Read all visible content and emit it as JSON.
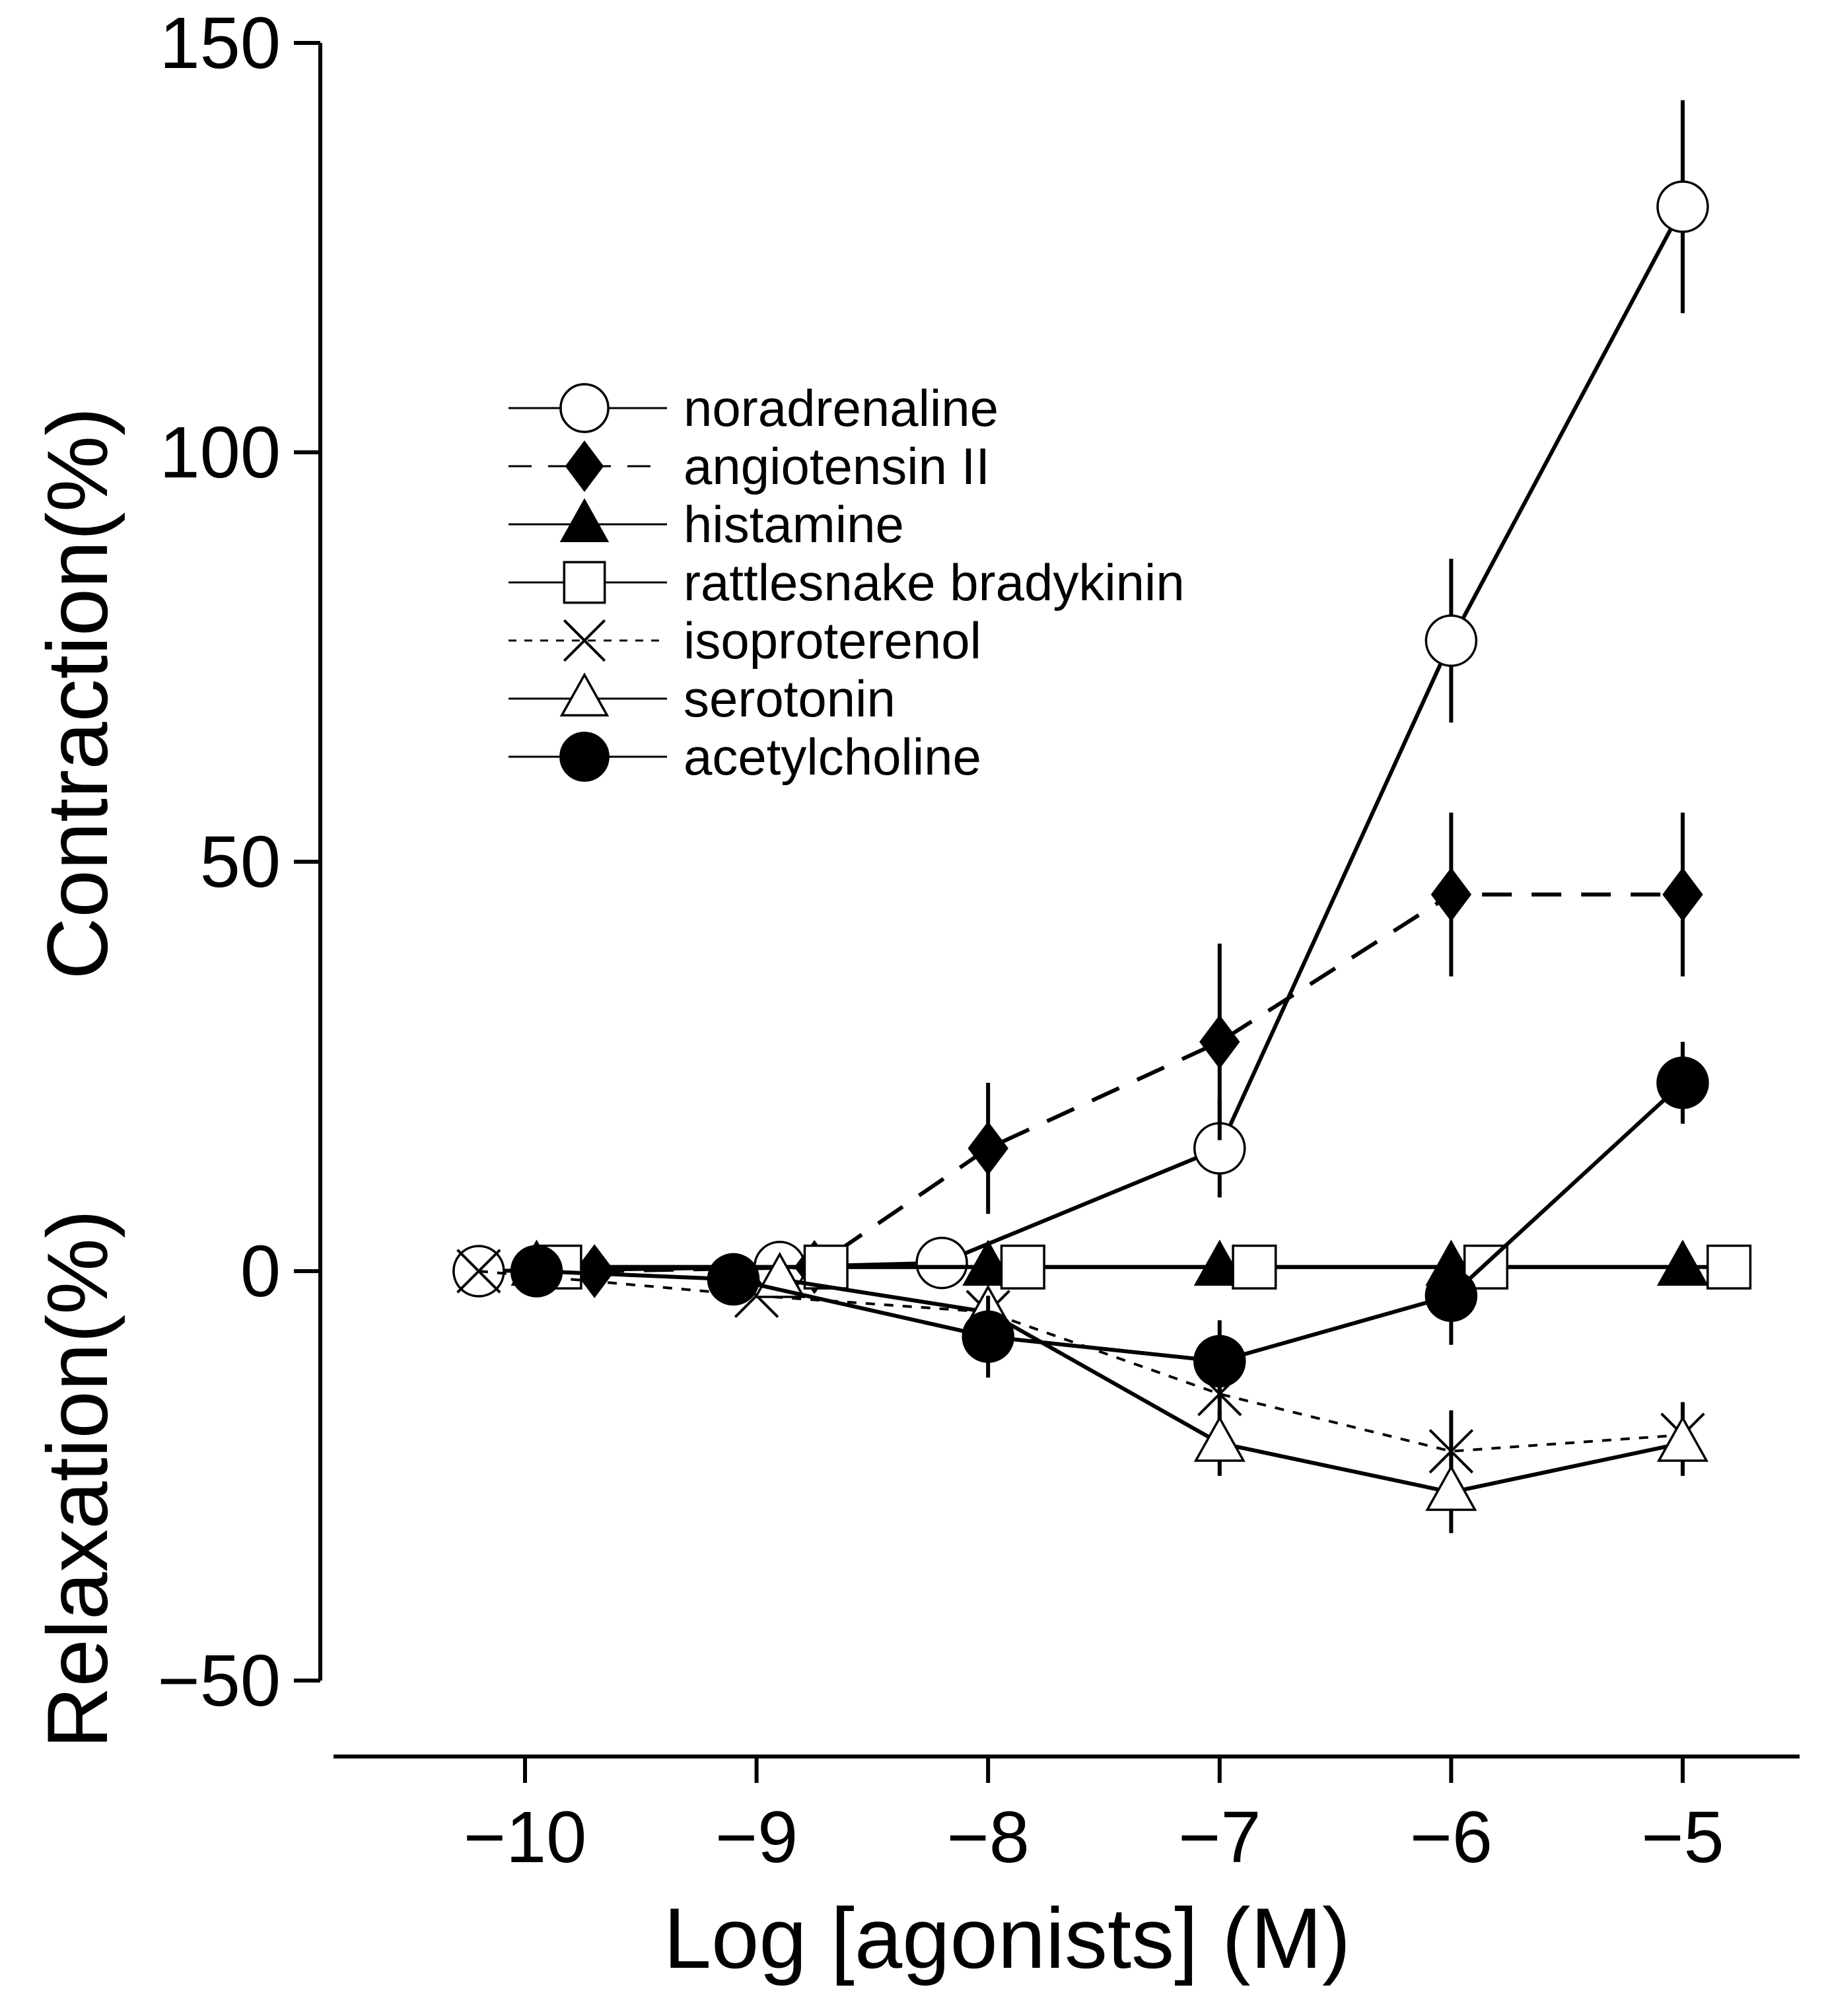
{
  "colors": {
    "ink": "#000000",
    "paper": "#ffffff"
  },
  "chart_data": {
    "type": "line",
    "title": "",
    "xlabel": "Log [agonists] (M)",
    "ylabel_upper": "Contraction(%)",
    "ylabel_lower": "Relaxation(%)",
    "xlim": [
      -10.9,
      -4.5
    ],
    "ylim": [
      -50,
      150
    ],
    "xticks": [
      -10,
      -9,
      -8,
      -7,
      -6,
      -5
    ],
    "xtick_labels": [
      "−10",
      "−9",
      "−8",
      "−7",
      "−6",
      "−5"
    ],
    "yticks": [
      -50,
      0,
      50,
      100,
      150
    ],
    "ytick_labels": [
      "−50",
      "0",
      "50",
      "100",
      "150"
    ],
    "grid": false,
    "legend_position": "upper-left",
    "series": [
      {
        "name": "noradrenaline",
        "marker": "circle-open",
        "dash": "solid",
        "x": [
          -10.2,
          -8.9,
          -8.2,
          -7.0,
          -6.0,
          -5.0
        ],
        "y": [
          0,
          0.5,
          1,
          15,
          77,
          130
        ],
        "err": [
          0,
          0,
          0,
          6,
          10,
          13
        ]
      },
      {
        "name": "angiotensin II",
        "marker": "diamond-filled",
        "dash": "dashed",
        "x": [
          -9.7,
          -8.75,
          -8.0,
          -7.0,
          -6.0,
          -5.0
        ],
        "y": [
          0,
          0.5,
          15,
          28,
          46,
          46
        ],
        "err": [
          0,
          0,
          8,
          12,
          10,
          10
        ]
      },
      {
        "name": "histamine",
        "marker": "triangle-filled",
        "dash": "solid",
        "x": [
          -9.95,
          -8.0,
          -7.0,
          -6.0,
          -5.0
        ],
        "y": [
          0.5,
          0.5,
          0.5,
          0.5,
          0.5
        ],
        "err": [
          0,
          0,
          0,
          0,
          0
        ]
      },
      {
        "name": "rattlesnake bradykinin",
        "marker": "square-open",
        "dash": "solid",
        "x": [
          -9.85,
          -8.7,
          -7.85,
          -6.85,
          -5.85,
          -4.8
        ],
        "y": [
          0.5,
          0.5,
          0.5,
          0.5,
          0.5,
          0.5
        ],
        "err": [
          0,
          0,
          0,
          0,
          0,
          0
        ]
      },
      {
        "name": "isoproterenol",
        "marker": "x",
        "dash": "dotted",
        "x": [
          -10.2,
          -9.0,
          -8.0,
          -7.0,
          -6.0,
          -5.0
        ],
        "y": [
          0,
          -3,
          -5,
          -15,
          -22,
          -20
        ],
        "err": [
          0,
          0,
          0,
          5,
          5,
          4
        ]
      },
      {
        "name": "serotonin",
        "marker": "triangle-open",
        "dash": "solid",
        "x": [
          -8.9,
          -8.0,
          -7.0,
          -6.0,
          -5.0
        ],
        "y": [
          -1,
          -5,
          -21,
          -27,
          -21
        ],
        "err": [
          0,
          0,
          4,
          5,
          4
        ]
      },
      {
        "name": "acetylcholine",
        "marker": "circle-filled",
        "dash": "solid",
        "x": [
          -9.95,
          -9.1,
          -8.0,
          -7.0,
          -6.0,
          -5.0
        ],
        "y": [
          0,
          -1,
          -8,
          -11,
          -3,
          23
        ],
        "err": [
          0,
          0,
          5,
          5,
          6,
          5
        ]
      }
    ]
  }
}
